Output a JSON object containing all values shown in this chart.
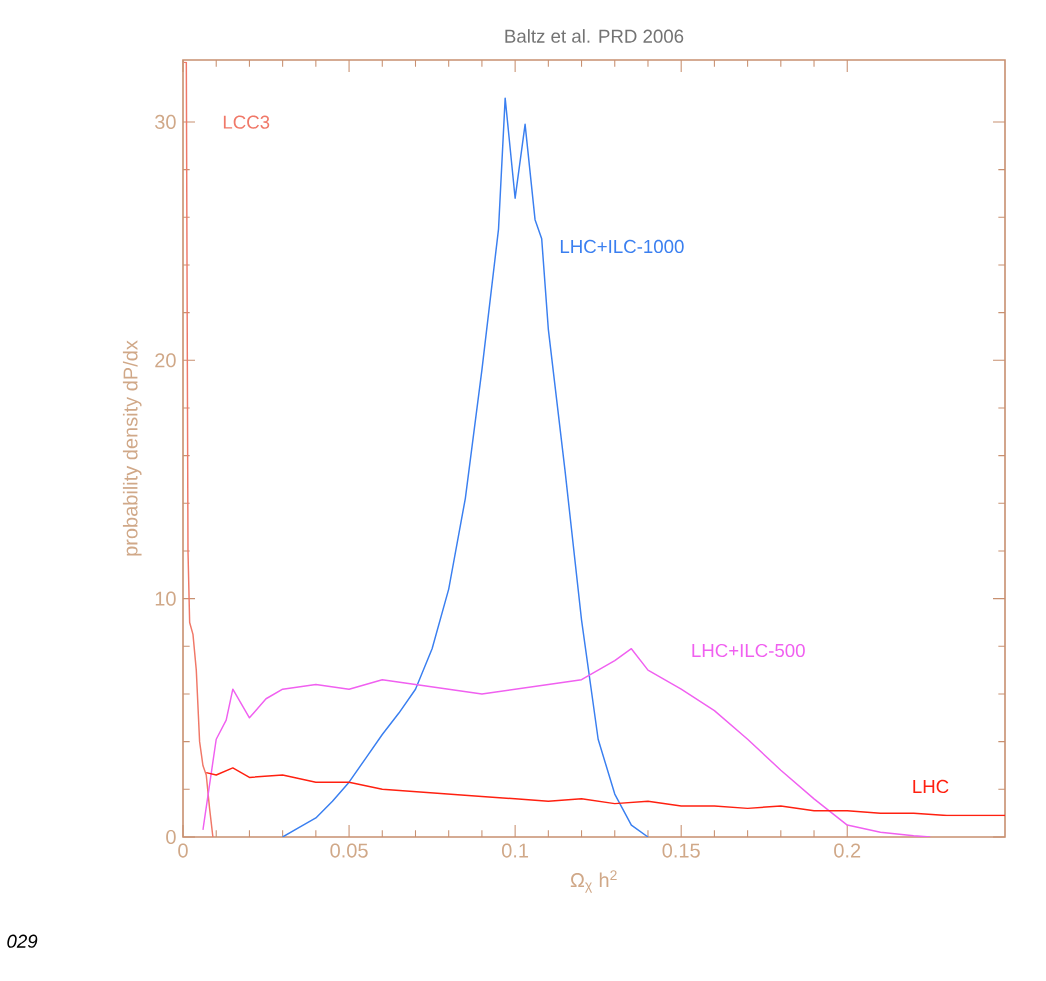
{
  "chart_data": {
    "type": "line",
    "title": "Baltz et al. PRD 2006",
    "xlabel": "Ω$_{χ}$ h$^{2}$",
    "ylabel": "probability density dP/dx",
    "xlim": [
      0,
      0.2475
    ],
    "ylim": [
      0,
      32.6
    ],
    "xticks": [
      0,
      0.05,
      0.1,
      0.15,
      0.2
    ],
    "yticks": [
      0,
      10,
      20,
      30
    ],
    "legend": false,
    "grid": false,
    "series": [
      {
        "name": "LCC3",
        "color": "#f07868",
        "x": [
          0.0003,
          0.001,
          0.0015,
          0.002,
          0.003,
          0.004,
          0.005,
          0.006,
          0.007,
          0.008,
          0.009
        ],
        "values": [
          32.5,
          32.5,
          12,
          9,
          8.5,
          7,
          4,
          3,
          2.6,
          1.2,
          0
        ]
      },
      {
        "name": "LHC+ILC-1000",
        "color": "#3a7ff0",
        "x": [
          0.03,
          0.035,
          0.04,
          0.045,
          0.05,
          0.055,
          0.06,
          0.065,
          0.07,
          0.075,
          0.08,
          0.085,
          0.09,
          0.095,
          0.097,
          0.1,
          0.103,
          0.106,
          0.108,
          0.11,
          0.115,
          0.12,
          0.125,
          0.13,
          0.135,
          0.14
        ],
        "values": [
          0,
          0.4,
          0.8,
          1.5,
          2.3,
          3.3,
          4.3,
          5.2,
          6.2,
          7.9,
          10.4,
          14.2,
          19.6,
          25.5,
          31,
          26.8,
          29.9,
          25.9,
          25.1,
          21.3,
          15.4,
          9.1,
          4.1,
          1.8,
          0.5,
          0
        ]
      },
      {
        "name": "LHC+ILC-500",
        "color": "#f060f0",
        "x": [
          0.006,
          0.01,
          0.013,
          0.015,
          0.02,
          0.025,
          0.03,
          0.04,
          0.05,
          0.06,
          0.07,
          0.08,
          0.09,
          0.1,
          0.11,
          0.12,
          0.13,
          0.135,
          0.14,
          0.15,
          0.16,
          0.17,
          0.18,
          0.19,
          0.2,
          0.21,
          0.22,
          0.225
        ],
        "values": [
          0.3,
          4.1,
          4.9,
          6.2,
          5.0,
          5.8,
          6.2,
          6.4,
          6.2,
          6.6,
          6.4,
          6.2,
          6.0,
          6.2,
          6.4,
          6.6,
          7.4,
          7.9,
          7.0,
          6.2,
          5.3,
          4.1,
          2.8,
          1.6,
          0.5,
          0.2,
          0.05,
          0
        ]
      },
      {
        "name": "LHC",
        "color": "#ff2010",
        "x": [
          0.007,
          0.01,
          0.015,
          0.02,
          0.03,
          0.04,
          0.05,
          0.06,
          0.07,
          0.08,
          0.09,
          0.1,
          0.11,
          0.12,
          0.13,
          0.14,
          0.15,
          0.16,
          0.17,
          0.18,
          0.19,
          0.2,
          0.21,
          0.22,
          0.23,
          0.24,
          0.2475
        ],
        "values": [
          2.7,
          2.6,
          2.9,
          2.5,
          2.6,
          2.3,
          2.3,
          2.0,
          1.9,
          1.8,
          1.7,
          1.6,
          1.5,
          1.6,
          1.4,
          1.5,
          1.3,
          1.3,
          1.2,
          1.3,
          1.1,
          1.1,
          1.0,
          1.0,
          0.9,
          0.9,
          0.9
        ]
      }
    ],
    "annotations": [
      "029"
    ]
  }
}
